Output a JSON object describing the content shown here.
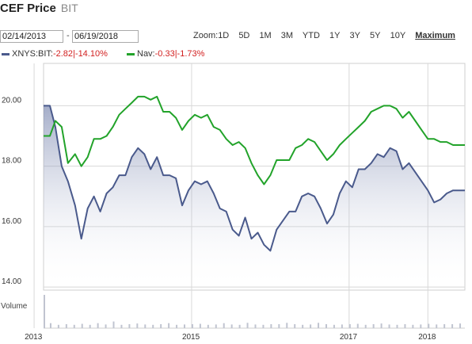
{
  "header": {
    "title": "CEF Price",
    "ticker": "BIT"
  },
  "range": {
    "start": "02/14/2013",
    "end": "06/19/2018",
    "separator": "-"
  },
  "zoom": {
    "label": "Zoom:",
    "options": [
      "1D",
      "5D",
      "1M",
      "3M",
      "YTD",
      "1Y",
      "3Y",
      "5Y",
      "10Y"
    ],
    "active": "Maximum"
  },
  "legend": [
    {
      "name": "XNYS:BIT:",
      "change": "-2.82",
      "pct": "|-14.10%",
      "color": "#4a5a8c"
    },
    {
      "name": "Nav:",
      "change": "-0.33",
      "pct": "|-1.73%",
      "color": "#22a32a"
    }
  ],
  "chart_data": {
    "type": "line",
    "y_ticks": [
      14,
      16,
      18,
      20
    ],
    "y_tick_labels": [
      "14.00",
      "16.00",
      "18.00",
      "20.00"
    ],
    "ylim": [
      13.9,
      21.4
    ],
    "xlim": [
      2013.12,
      2018.47
    ],
    "x_ticks": [
      2013,
      2015,
      2017,
      2018
    ],
    "grid": true,
    "series": [
      {
        "name": "XNYS:BIT",
        "color": "#4a5a8c",
        "area": true,
        "x": [
          2013.12,
          2013.2,
          2013.27,
          2013.35,
          2013.43,
          2013.52,
          2013.6,
          2013.68,
          2013.76,
          2013.84,
          2013.92,
          2014.0,
          2014.08,
          2014.16,
          2014.24,
          2014.32,
          2014.4,
          2014.48,
          2014.56,
          2014.64,
          2014.72,
          2014.8,
          2014.88,
          2014.96,
          2015.04,
          2015.12,
          2015.2,
          2015.28,
          2015.36,
          2015.44,
          2015.52,
          2015.6,
          2015.68,
          2015.76,
          2015.84,
          2015.92,
          2016.0,
          2016.08,
          2016.16,
          2016.24,
          2016.32,
          2016.4,
          2016.48,
          2016.56,
          2016.64,
          2016.72,
          2016.8,
          2016.88,
          2016.96,
          2017.04,
          2017.12,
          2017.2,
          2017.28,
          2017.36,
          2017.44,
          2017.52,
          2017.6,
          2017.68,
          2017.76,
          2017.84,
          2017.92,
          2018.0,
          2018.08,
          2018.16,
          2018.24,
          2018.32,
          2018.4,
          2018.47
        ],
        "y": [
          20.0,
          20.0,
          19.3,
          18.0,
          17.5,
          16.7,
          15.6,
          16.6,
          17.0,
          16.5,
          17.1,
          17.3,
          17.7,
          17.7,
          18.3,
          18.6,
          18.4,
          17.9,
          18.3,
          17.7,
          17.7,
          17.6,
          16.7,
          17.2,
          17.5,
          17.4,
          17.5,
          17.1,
          16.6,
          16.5,
          15.9,
          15.7,
          16.3,
          15.6,
          15.8,
          15.4,
          15.2,
          15.9,
          16.2,
          16.5,
          16.5,
          17.0,
          17.1,
          17.0,
          16.6,
          16.1,
          16.4,
          17.1,
          17.5,
          17.3,
          17.9,
          17.9,
          18.1,
          18.4,
          18.3,
          18.6,
          18.5,
          17.9,
          18.1,
          17.8,
          17.5,
          17.2,
          16.8,
          16.9,
          17.1,
          17.2,
          17.2,
          17.2
        ]
      },
      {
        "name": "Nav",
        "color": "#22a32a",
        "x": [
          2013.12,
          2013.2,
          2013.27,
          2013.35,
          2013.43,
          2013.52,
          2013.6,
          2013.68,
          2013.76,
          2013.84,
          2013.92,
          2014.0,
          2014.08,
          2014.16,
          2014.24,
          2014.32,
          2014.4,
          2014.48,
          2014.56,
          2014.64,
          2014.72,
          2014.8,
          2014.88,
          2014.96,
          2015.04,
          2015.12,
          2015.2,
          2015.28,
          2015.36,
          2015.44,
          2015.52,
          2015.6,
          2015.68,
          2015.76,
          2015.84,
          2015.92,
          2016.0,
          2016.08,
          2016.16,
          2016.24,
          2016.32,
          2016.4,
          2016.48,
          2016.56,
          2016.64,
          2016.72,
          2016.8,
          2016.88,
          2016.96,
          2017.04,
          2017.12,
          2017.2,
          2017.28,
          2017.36,
          2017.44,
          2017.52,
          2017.6,
          2017.68,
          2017.76,
          2017.84,
          2017.92,
          2018.0,
          2018.08,
          2018.16,
          2018.24,
          2018.32,
          2018.4,
          2018.47
        ],
        "y": [
          19.0,
          19.0,
          19.5,
          19.3,
          18.1,
          18.4,
          18.0,
          18.3,
          18.9,
          18.9,
          19.0,
          19.3,
          19.7,
          19.9,
          20.1,
          20.3,
          20.3,
          20.2,
          20.3,
          19.8,
          19.8,
          19.6,
          19.2,
          19.5,
          19.7,
          19.6,
          19.7,
          19.3,
          19.2,
          18.9,
          18.7,
          18.8,
          18.6,
          18.1,
          17.7,
          17.4,
          17.7,
          18.2,
          18.2,
          18.2,
          18.6,
          18.7,
          18.9,
          18.8,
          18.5,
          18.2,
          18.4,
          18.7,
          18.9,
          19.1,
          19.3,
          19.5,
          19.8,
          19.9,
          20.0,
          20.0,
          19.9,
          19.6,
          19.8,
          19.5,
          19.2,
          18.9,
          18.9,
          18.8,
          18.8,
          18.7,
          18.7,
          18.7
        ]
      }
    ],
    "volume": {
      "label": "Volume",
      "x": [
        2013.12,
        2013.2,
        2013.3,
        2013.4,
        2013.5,
        2013.6,
        2013.7,
        2013.8,
        2013.9,
        2014.0,
        2014.1,
        2014.2,
        2014.3,
        2014.4,
        2014.5,
        2014.6,
        2014.7,
        2014.8,
        2014.9,
        2015.0,
        2015.1,
        2015.2,
        2015.3,
        2015.4,
        2015.5,
        2015.6,
        2015.7,
        2015.8,
        2015.9,
        2016.0,
        2016.1,
        2016.2,
        2016.3,
        2016.4,
        2016.5,
        2016.6,
        2016.7,
        2016.8,
        2016.9,
        2017.0,
        2017.1,
        2017.2,
        2017.3,
        2017.4,
        2017.5,
        2017.6,
        2017.7,
        2017.8,
        2017.9,
        2018.0,
        2018.1,
        2018.2,
        2018.3,
        2018.4
      ],
      "values": [
        10,
        1.5,
        1,
        1.2,
        1,
        1.3,
        1,
        1.5,
        1.1,
        2,
        1,
        1.2,
        1.4,
        1.1,
        1,
        1.2,
        1.5,
        1,
        1.1,
        1.2,
        1.3,
        1,
        1.1,
        1.5,
        1.1,
        1,
        1.6,
        1.1,
        1,
        1.2,
        1.2,
        1.6,
        1.2,
        1,
        1.1,
        1.6,
        1.2,
        1,
        1.1,
        1.2,
        1.3,
        1,
        1.2,
        1.4,
        1.1,
        1,
        1.2,
        1,
        1.1,
        1.3,
        1.1,
        1.2,
        1.2,
        1.4
      ]
    }
  }
}
